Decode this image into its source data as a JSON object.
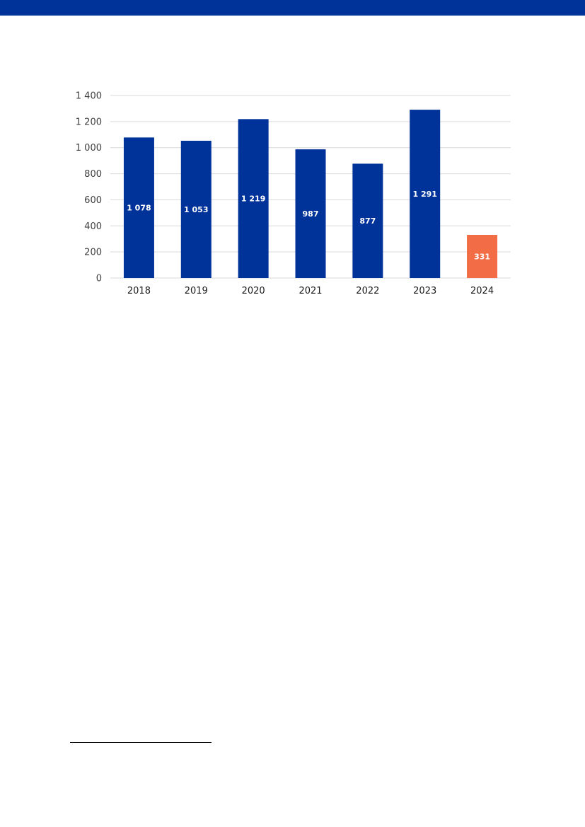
{
  "colors": {
    "header_band": "#00339a",
    "bar_primary": "#00339a",
    "bar_highlight": "#f26d45",
    "gridline": "#d9d9d9"
  },
  "chart_data": {
    "type": "bar",
    "categories": [
      "2018",
      "2019",
      "2020",
      "2021",
      "2022",
      "2023",
      "2024"
    ],
    "values": [
      1078,
      1053,
      1219,
      987,
      877,
      1291,
      331
    ],
    "data_labels": [
      "1 078",
      "1 053",
      "1 219",
      "987",
      "877",
      "1 291",
      "331"
    ],
    "highlight_categories": [
      "2024"
    ],
    "ylim": [
      0,
      1400
    ],
    "yticks": [
      0,
      200,
      400,
      600,
      800,
      1000,
      1200,
      1400
    ],
    "ytick_labels": [
      "0",
      "200",
      "400",
      "600",
      "800",
      "1 000",
      "1 200",
      "1 400"
    ],
    "grid": true,
    "title": "",
    "xlabel": "",
    "ylabel": ""
  }
}
